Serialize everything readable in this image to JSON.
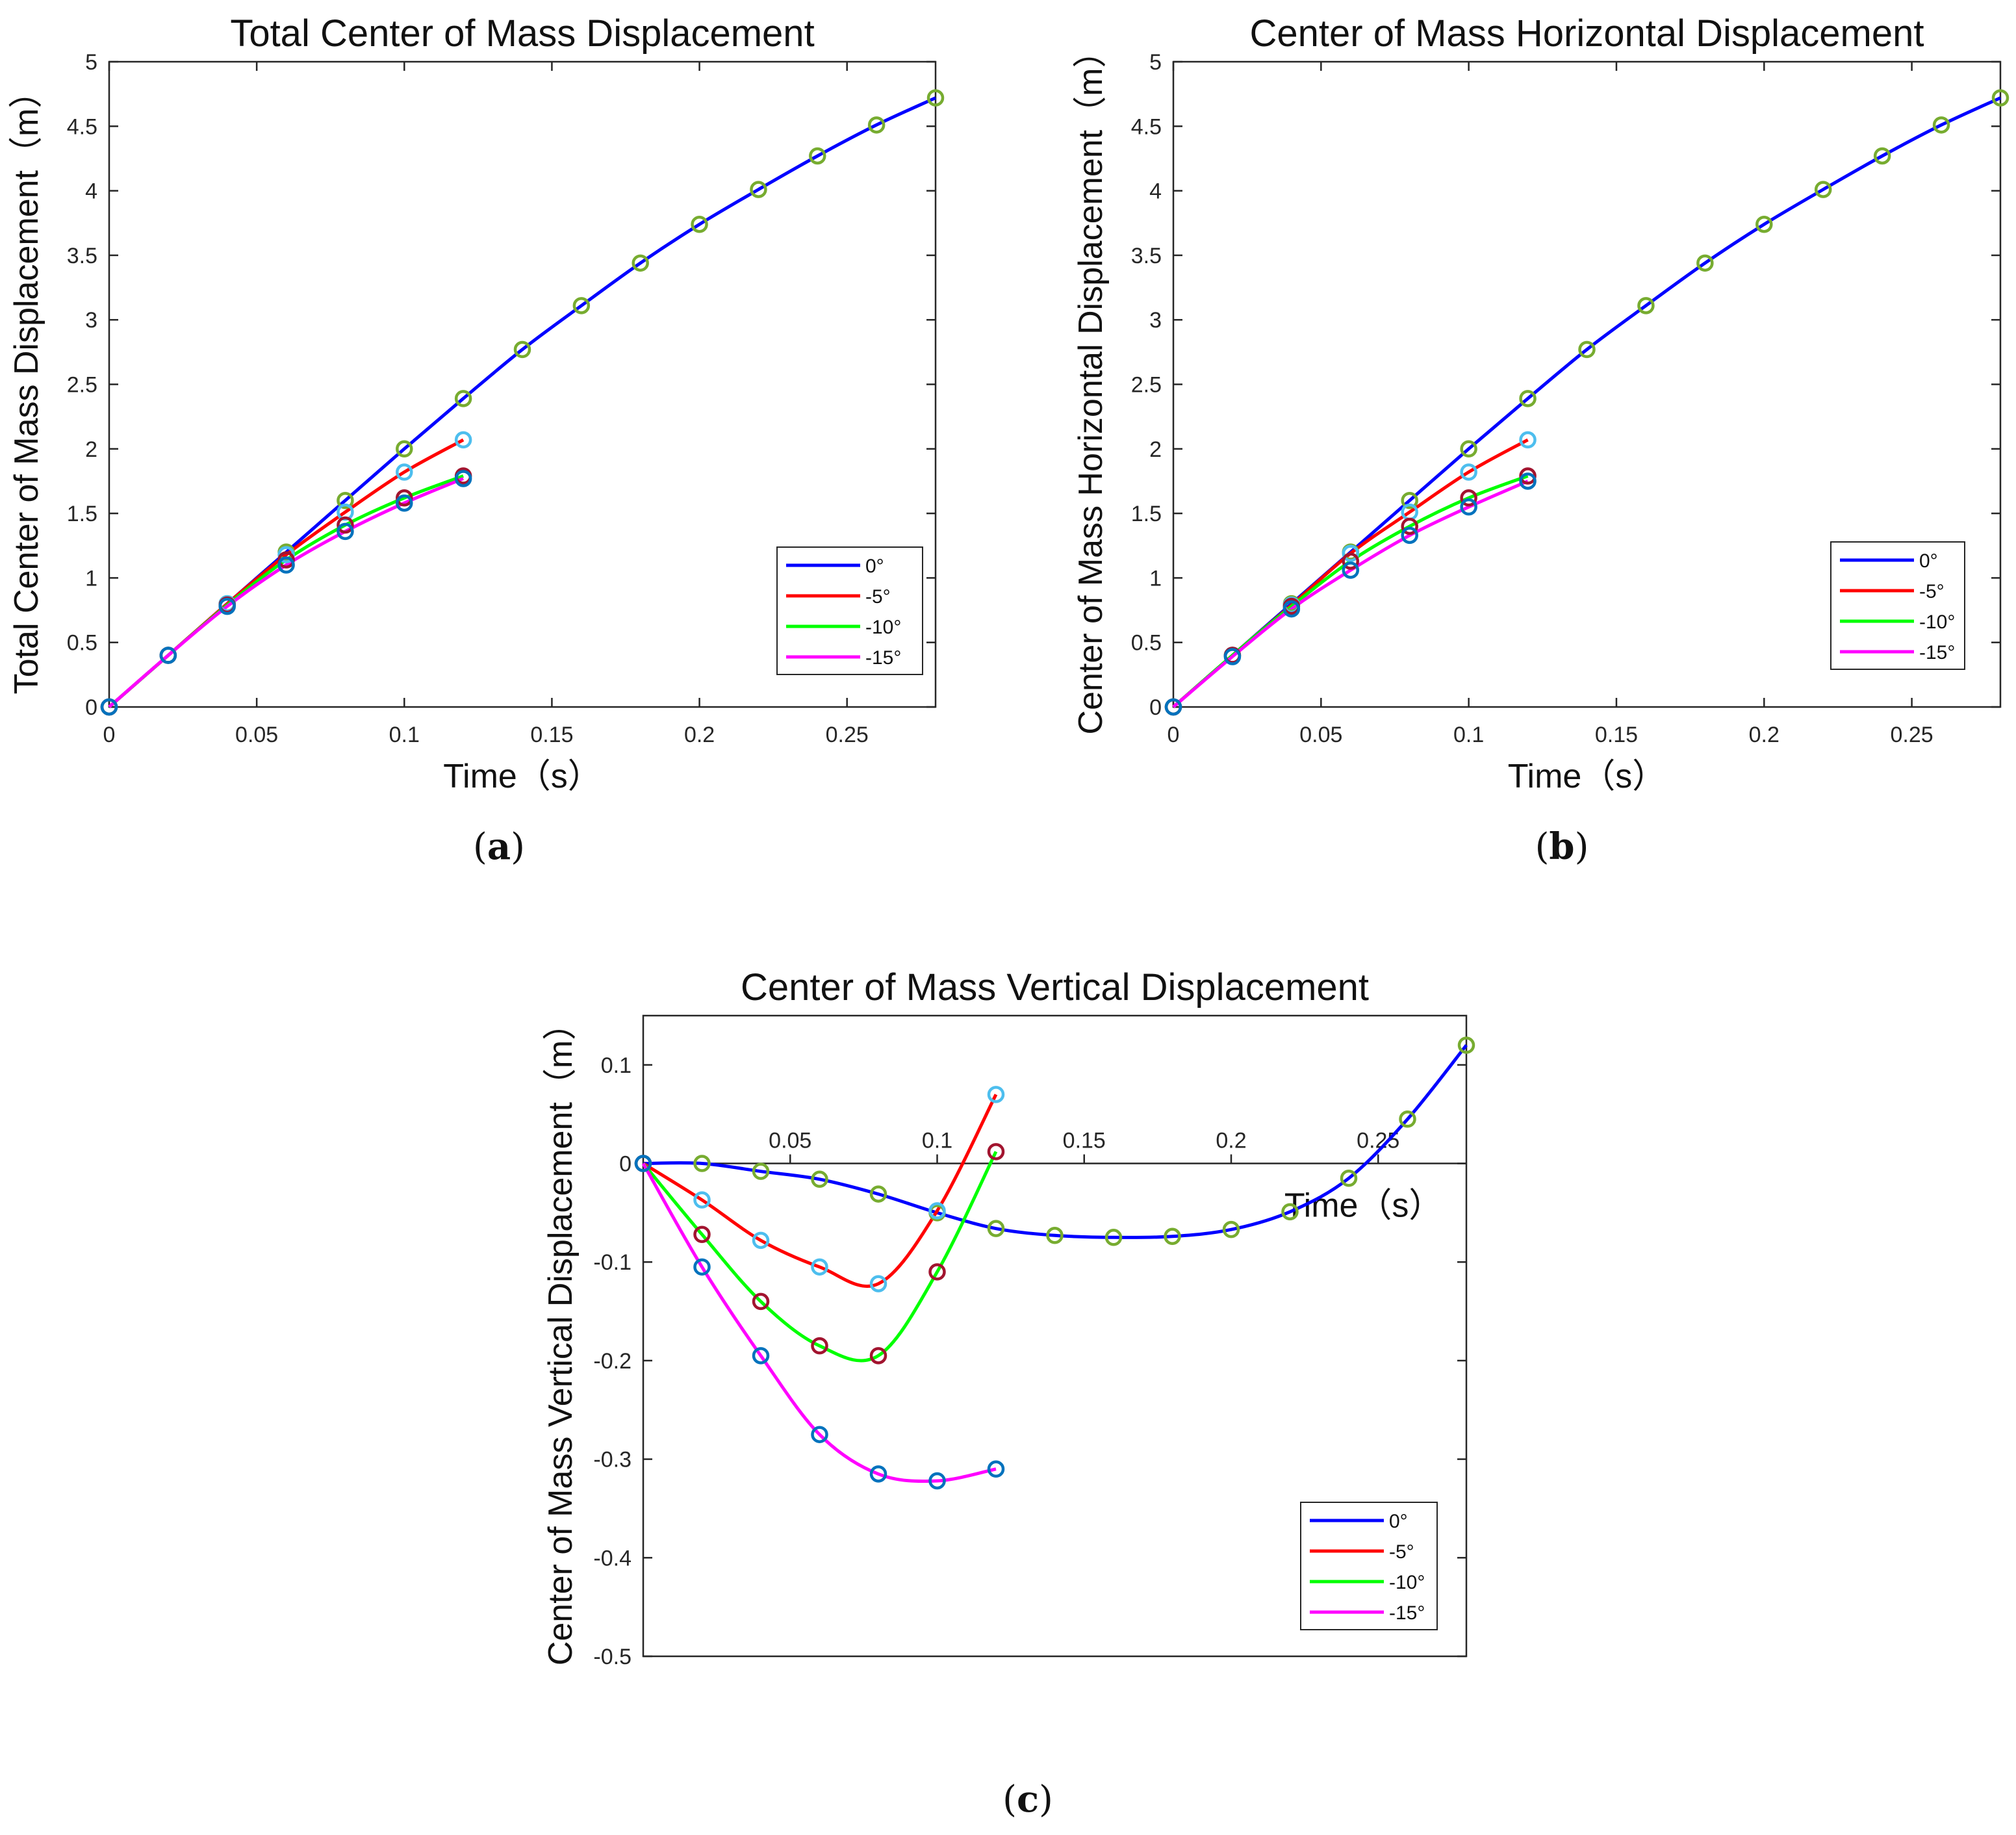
{
  "chart_data": [
    {
      "id": "a",
      "type": "line",
      "panel_label": "a",
      "title": "Total Center of Mass Displacement",
      "xlabel": "Time（s）",
      "ylabel": "Total Center of Mass Displacement（m）",
      "xlim": [
        0,
        0.28
      ],
      "ylim": [
        0,
        5
      ],
      "xticks": [
        0,
        0.05,
        0.1,
        0.15,
        0.2,
        0.25
      ],
      "xtick_labels": [
        "0",
        "0.05",
        "0.1",
        "0.15",
        "0.2",
        "0.25"
      ],
      "yticks": [
        0,
        0.5,
        1,
        1.5,
        2,
        2.5,
        3,
        3.5,
        4,
        4.5,
        5
      ],
      "ytick_labels": [
        "0",
        "0.5",
        "1",
        "1.5",
        "2",
        "2.5",
        "3",
        "3.5",
        "4",
        "4.5",
        "5"
      ],
      "legend_position": "bottom-right",
      "series": [
        {
          "name": "0°",
          "color": "#0000ff",
          "marker_color": "#77ac30",
          "x": [
            0,
            0.02,
            0.04,
            0.06,
            0.08,
            0.1,
            0.12,
            0.14,
            0.16,
            0.18,
            0.2,
            0.22,
            0.24,
            0.26,
            0.28
          ],
          "y": [
            0,
            0.4,
            0.8,
            1.2,
            1.6,
            2.0,
            2.39,
            2.77,
            3.11,
            3.44,
            3.74,
            4.01,
            4.27,
            4.51,
            4.72
          ]
        },
        {
          "name": "-5°",
          "color": "#ff0000",
          "marker_color": "#4dbeee",
          "x": [
            0,
            0.02,
            0.04,
            0.06,
            0.08,
            0.1,
            0.12
          ],
          "y": [
            0,
            0.4,
            0.8,
            1.18,
            1.51,
            1.82,
            2.07
          ]
        },
        {
          "name": "-10°",
          "color": "#00ff00",
          "marker_color": "#a2142f",
          "x": [
            0,
            0.02,
            0.04,
            0.06,
            0.08,
            0.1,
            0.12
          ],
          "y": [
            0,
            0.4,
            0.79,
            1.14,
            1.41,
            1.62,
            1.79
          ]
        },
        {
          "name": "-15°",
          "color": "#ff00ff",
          "marker_color": "#0072bd",
          "x": [
            0,
            0.02,
            0.04,
            0.06,
            0.08,
            0.1,
            0.12
          ],
          "y": [
            0,
            0.4,
            0.78,
            1.1,
            1.36,
            1.58,
            1.77
          ]
        }
      ]
    },
    {
      "id": "b",
      "type": "line",
      "panel_label": "b",
      "title": "Center of Mass Horizontal Displacement",
      "xlabel": "Time（s）",
      "ylabel": "Center of Mass Horizontal Displacement（m）",
      "xlim": [
        0,
        0.28
      ],
      "ylim": [
        0,
        5
      ],
      "xticks": [
        0,
        0.05,
        0.1,
        0.15,
        0.2,
        0.25
      ],
      "xtick_labels": [
        "0",
        "0.05",
        "0.1",
        "0.15",
        "0.2",
        "0.25"
      ],
      "yticks": [
        0,
        0.5,
        1,
        1.5,
        2,
        2.5,
        3,
        3.5,
        4,
        4.5,
        5
      ],
      "ytick_labels": [
        "0",
        "0.5",
        "1",
        "1.5",
        "2",
        "2.5",
        "3",
        "3.5",
        "4",
        "4.5",
        "5"
      ],
      "legend_position": "bottom-right",
      "series": [
        {
          "name": "0°",
          "color": "#0000ff",
          "marker_color": "#77ac30",
          "x": [
            0,
            0.02,
            0.04,
            0.06,
            0.08,
            0.1,
            0.12,
            0.14,
            0.16,
            0.18,
            0.2,
            0.22,
            0.24,
            0.26,
            0.28
          ],
          "y": [
            0,
            0.4,
            0.8,
            1.2,
            1.6,
            2.0,
            2.39,
            2.77,
            3.11,
            3.44,
            3.74,
            4.01,
            4.27,
            4.51,
            4.72
          ]
        },
        {
          "name": "-5°",
          "color": "#ff0000",
          "marker_color": "#4dbeee",
          "x": [
            0,
            0.02,
            0.04,
            0.06,
            0.08,
            0.1,
            0.12
          ],
          "y": [
            0,
            0.4,
            0.79,
            1.19,
            1.51,
            1.82,
            2.07
          ]
        },
        {
          "name": "-10°",
          "color": "#00ff00",
          "marker_color": "#a2142f",
          "x": [
            0,
            0.02,
            0.04,
            0.06,
            0.08,
            0.1,
            0.12
          ],
          "y": [
            0,
            0.4,
            0.78,
            1.13,
            1.4,
            1.62,
            1.79
          ]
        },
        {
          "name": "-15°",
          "color": "#ff00ff",
          "marker_color": "#0072bd",
          "x": [
            0,
            0.02,
            0.04,
            0.06,
            0.08,
            0.1,
            0.12
          ],
          "y": [
            0,
            0.39,
            0.76,
            1.06,
            1.33,
            1.55,
            1.75
          ]
        }
      ]
    },
    {
      "id": "c",
      "type": "line",
      "panel_label": "c",
      "title": "Center of Mass Vertical Displacement",
      "xlabel": "Time（s）",
      "ylabel": "Center of Mass Vertical Displacement（m）",
      "xlim": [
        0,
        0.28
      ],
      "ylim": [
        -0.5,
        0.15
      ],
      "xticks": [
        0.05,
        0.1,
        0.15,
        0.2,
        0.25
      ],
      "xtick_labels": [
        "0.05",
        "0.1",
        "0.15",
        "0.2",
        "0.25"
      ],
      "yticks": [
        -0.5,
        -0.4,
        -0.3,
        -0.2,
        -0.1,
        0,
        0.1
      ],
      "ytick_labels": [
        "-0.5",
        "-0.4",
        "-0.3",
        "-0.2",
        "-0.1",
        "0",
        "0.1"
      ],
      "x_axis_at_origin": true,
      "legend_position": "bottom-right",
      "series": [
        {
          "name": "0°",
          "color": "#0000ff",
          "marker_color": "#77ac30",
          "x": [
            0,
            0.02,
            0.04,
            0.06,
            0.08,
            0.1,
            0.12,
            0.14,
            0.16,
            0.18,
            0.2,
            0.22,
            0.24,
            0.26,
            0.28
          ],
          "y": [
            0,
            0,
            -0.008,
            -0.016,
            -0.031,
            -0.05,
            -0.066,
            -0.073,
            -0.075,
            -0.074,
            -0.067,
            -0.049,
            -0.015,
            0.045,
            0.12
          ]
        },
        {
          "name": "-5°",
          "color": "#ff0000",
          "marker_color": "#4dbeee",
          "x": [
            0,
            0.02,
            0.04,
            0.06,
            0.08,
            0.1,
            0.12
          ],
          "y": [
            0,
            -0.037,
            -0.078,
            -0.105,
            -0.122,
            -0.048,
            0.07
          ]
        },
        {
          "name": "-10°",
          "color": "#00ff00",
          "marker_color": "#a2142f",
          "x": [
            0,
            0.02,
            0.04,
            0.06,
            0.08,
            0.1,
            0.12
          ],
          "y": [
            0,
            -0.072,
            -0.14,
            -0.185,
            -0.195,
            -0.11,
            0.012
          ]
        },
        {
          "name": "-15°",
          "color": "#ff00ff",
          "marker_color": "#0072bd",
          "x": [
            0,
            0.02,
            0.04,
            0.06,
            0.08,
            0.1,
            0.12
          ],
          "y": [
            0,
            -0.105,
            -0.195,
            -0.275,
            -0.315,
            -0.322,
            -0.31
          ]
        }
      ]
    }
  ]
}
